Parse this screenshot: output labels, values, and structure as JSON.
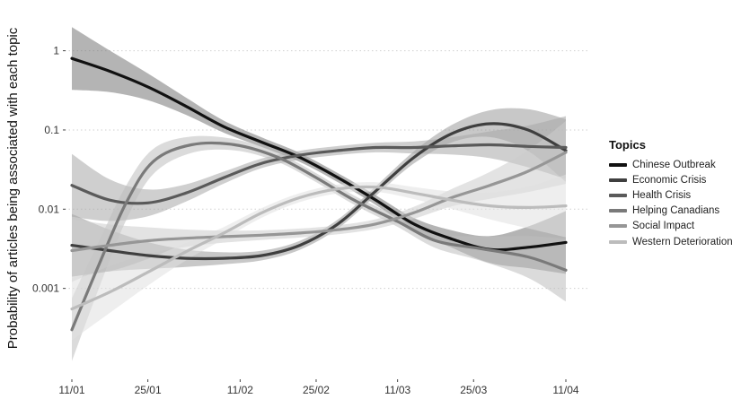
{
  "chart_data": {
    "type": "line",
    "title": "",
    "xlabel": "",
    "ylabel": "Probability of articles being associated with each topic",
    "y_scale": "log",
    "ylim": [
      0.0001,
      2
    ],
    "y_ticks": [
      {
        "value": 1,
        "label": "1"
      },
      {
        "value": 0.1,
        "label": "0.1"
      },
      {
        "value": 0.01,
        "label": "0.01"
      },
      {
        "value": 0.001,
        "label": "0.001"
      }
    ],
    "x_ticks": [
      "11/01",
      "25/01",
      "11/02",
      "25/02",
      "11/03",
      "25/03",
      "11/04"
    ],
    "x_tick_positions": [
      0,
      14,
      31,
      45,
      60,
      74,
      91
    ],
    "grid": "horizontal-dotted",
    "legend": {
      "title": "Topics",
      "position": "right"
    },
    "series": [
      {
        "name": "Chinese Outbreak",
        "color": "#111111",
        "band": "#777777",
        "x": [
          0,
          7,
          14,
          21,
          28,
          35,
          42,
          49,
          56,
          63,
          70,
          77,
          84,
          91
        ],
        "y": [
          0.8,
          0.55,
          0.35,
          0.2,
          0.11,
          0.07,
          0.045,
          0.025,
          0.013,
          0.0065,
          0.0042,
          0.0031,
          0.0033,
          0.0038
        ]
      },
      {
        "name": "Economic Crisis",
        "color": "#3f3f3f",
        "band": "#9a9a9a",
        "x": [
          0,
          7,
          14,
          21,
          28,
          35,
          42,
          49,
          56,
          63,
          70,
          77,
          84,
          91
        ],
        "y": [
          0.0035,
          0.003,
          0.0026,
          0.0024,
          0.0024,
          0.0026,
          0.0035,
          0.0065,
          0.017,
          0.045,
          0.09,
          0.12,
          0.1,
          0.055
        ]
      },
      {
        "name": "Health Crisis",
        "color": "#5a5a5a",
        "band": "#a8a8a8",
        "x": [
          0,
          7,
          14,
          21,
          28,
          35,
          42,
          49,
          56,
          63,
          70,
          77,
          84,
          91
        ],
        "y": [
          0.02,
          0.013,
          0.012,
          0.016,
          0.025,
          0.038,
          0.048,
          0.055,
          0.06,
          0.06,
          0.063,
          0.065,
          0.062,
          0.06
        ]
      },
      {
        "name": "Helping Canadians",
        "color": "#7a7a7a",
        "band": "#bdbdbd",
        "x": [
          0,
          5,
          10,
          15,
          22,
          30,
          38,
          45,
          52,
          60,
          67,
          75,
          84,
          91
        ],
        "y": [
          0.0003,
          0.002,
          0.012,
          0.04,
          0.065,
          0.065,
          0.045,
          0.025,
          0.013,
          0.007,
          0.004,
          0.0032,
          0.0025,
          0.0017
        ]
      },
      {
        "name": "Social Impact",
        "color": "#969696",
        "band": "#cccccc",
        "x": [
          0,
          7,
          14,
          21,
          28,
          35,
          42,
          49,
          56,
          63,
          70,
          77,
          84,
          91
        ],
        "y": [
          0.003,
          0.0035,
          0.004,
          0.0043,
          0.0045,
          0.0047,
          0.005,
          0.0055,
          0.0065,
          0.009,
          0.014,
          0.02,
          0.03,
          0.052
        ]
      },
      {
        "name": "Western Deterioration",
        "color": "#bcbcbc",
        "band": "#e0e0e0",
        "x": [
          0,
          7,
          14,
          21,
          28,
          35,
          42,
          49,
          56,
          63,
          70,
          77,
          84,
          91
        ],
        "y": [
          0.00055,
          0.0009,
          0.0016,
          0.0029,
          0.005,
          0.009,
          0.014,
          0.018,
          0.019,
          0.016,
          0.013,
          0.011,
          0.0105,
          0.011
        ]
      }
    ]
  }
}
